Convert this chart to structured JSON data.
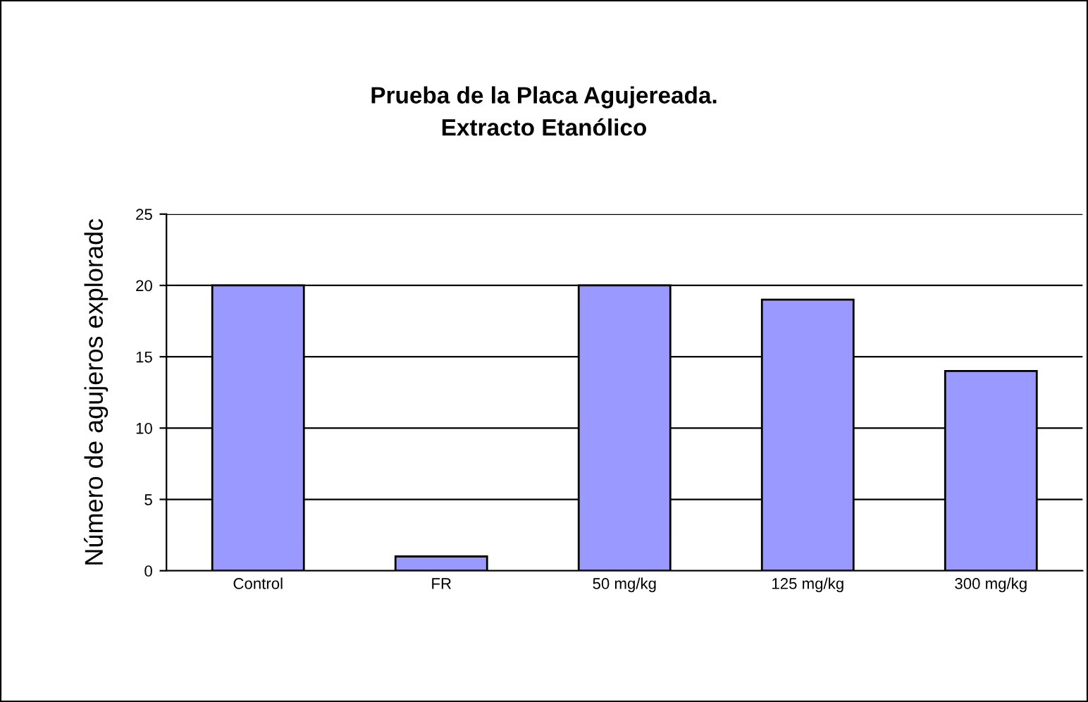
{
  "chart_data": {
    "type": "bar",
    "title": "Prueba de la Placa Agujereada.\nExtracto Etanólico",
    "ylabel": "Número de agujeros exploradc",
    "categories": [
      "Control",
      "FR",
      "50 mg/kg",
      "125 mg/kg",
      "300 mg/kg"
    ],
    "values": [
      20,
      1,
      20,
      19,
      14
    ],
    "color": "#9999ff",
    "ylim": [
      0,
      25
    ],
    "yticks": [
      0,
      5,
      10,
      15,
      20,
      25
    ],
    "grid": "y",
    "legend": false
  }
}
